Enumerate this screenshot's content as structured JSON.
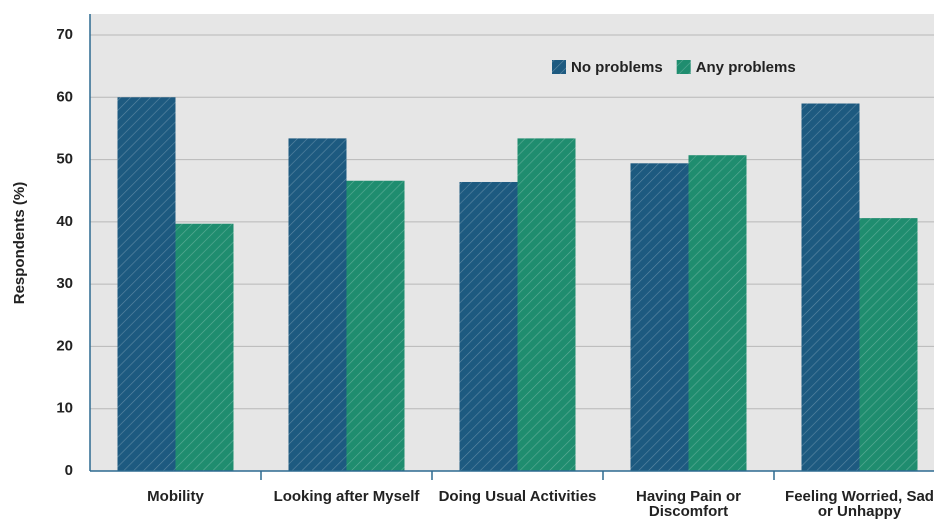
{
  "chart_data": {
    "type": "bar",
    "y_label": "Respondents (%)",
    "categories": [
      "Mobility",
      "Looking after Myself",
      "Doing Usual Activities",
      "Having Pain or Discomfort",
      "Feeling Worried, Sad or Unhappy"
    ],
    "series": [
      {
        "name": "No problems",
        "color": "#1d5a80",
        "values": [
          60,
          53.4,
          46.4,
          49.4,
          59
        ]
      },
      {
        "name": "Any problems",
        "color": "#1f8d6f",
        "values": [
          39.7,
          46.6,
          53.4,
          50.7,
          40.6
        ]
      }
    ],
    "ylim": [
      0,
      70
    ],
    "yticks": [
      0,
      10,
      20,
      30,
      40,
      50,
      60,
      70
    ],
    "grid": true,
    "legend": "top-right"
  }
}
